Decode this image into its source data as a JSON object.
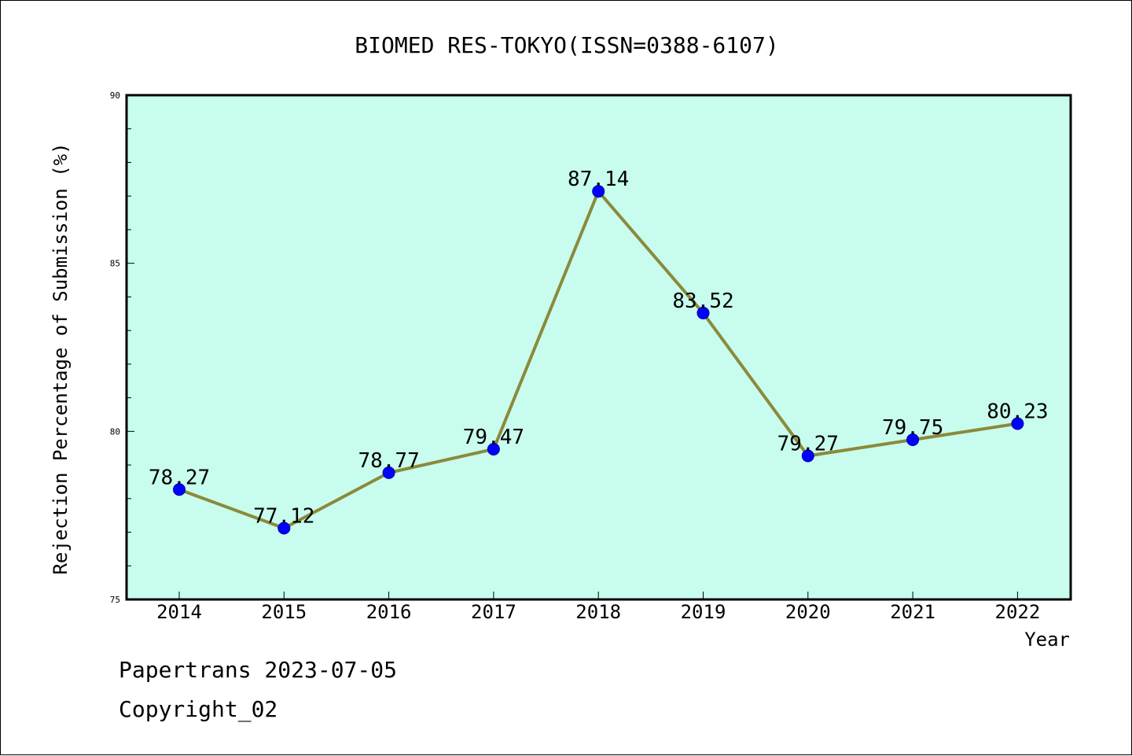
{
  "chart_data": {
    "type": "line",
    "title": "BIOMED RES-TOKYO(ISSN=0388-6107)",
    "xlabel": "Year",
    "ylabel": "Rejection Percentage of Submission (%)",
    "categories": [
      "2014",
      "2015",
      "2016",
      "2017",
      "2018",
      "2019",
      "2020",
      "2021",
      "2022"
    ],
    "series": [
      {
        "values": [
          78.27,
          77.12,
          78.77,
          79.47,
          87.14,
          83.52,
          79.27,
          79.75,
          80.23
        ],
        "data_labels": [
          "78.27",
          "77.12",
          "78.77",
          "79.47",
          "87.14",
          "83.52",
          "79.27",
          "79.75",
          "80.23"
        ]
      }
    ],
    "ylim": [
      75,
      90
    ],
    "y_major_ticks": [
      75,
      80,
      85,
      90
    ],
    "y_tick_labels": [
      "75",
      "80",
      "85",
      "90"
    ],
    "y_minor_step": 1,
    "grid": false,
    "colors": {
      "plot_background": "#c8fcee",
      "line": "#8b8a3a",
      "marker": "#0000ff"
    }
  },
  "footer": {
    "line1": "Papertrans 2023-07-05",
    "line2": "Copyright_02"
  }
}
